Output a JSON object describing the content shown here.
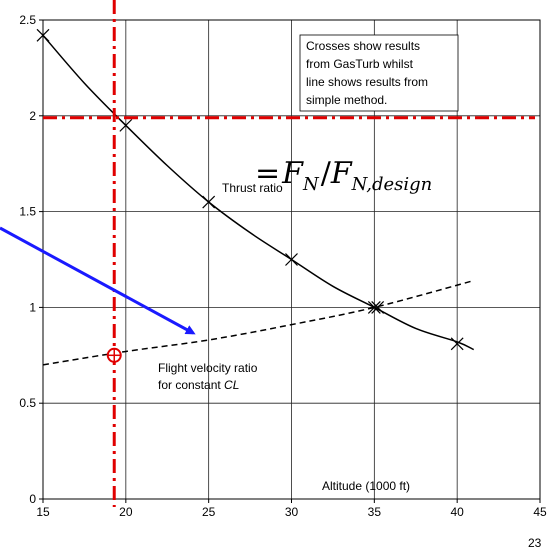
{
  "chart_data": {
    "type": "line",
    "xlabel": "Altitude (1000 ft)",
    "ylabel": "",
    "xlim": [
      15,
      45
    ],
    "ylim": [
      0,
      2.5
    ],
    "xticks": [
      "15",
      "20",
      "25",
      "30",
      "35",
      "40",
      "45"
    ],
    "yticks": [
      "0",
      "0.5",
      "1",
      "1.5",
      "2",
      "2.5"
    ],
    "grid": true,
    "series": [
      {
        "name": "Thrust ratio",
        "style": "solid",
        "color": "#000000",
        "x": [
          15,
          17.5,
          20,
          22.5,
          25,
          27.5,
          30,
          32.5,
          35,
          37.5,
          40,
          41
        ],
        "y": [
          2.42,
          2.17,
          1.95,
          1.74,
          1.55,
          1.39,
          1.25,
          1.11,
          1.0,
          0.89,
          0.82,
          0.78
        ]
      },
      {
        "name": "Flight velocity ratio for constant CL",
        "style": "dashed",
        "color": "#000000",
        "x": [
          15,
          20,
          25,
          30,
          35,
          41
        ],
        "y": [
          0.7,
          0.77,
          0.83,
          0.91,
          1.0,
          1.14
        ]
      }
    ],
    "markers": {
      "name": "GasTurb results",
      "symbol": "x",
      "points": [
        {
          "x": 15,
          "y": 2.42
        },
        {
          "x": 20,
          "y": 1.95
        },
        {
          "x": 25,
          "y": 1.55
        },
        {
          "x": 30,
          "y": 1.25
        },
        {
          "x": 35,
          "y": 1.0
        },
        {
          "x": 40,
          "y": 0.81
        },
        {
          "x": 35.2,
          "y": 1.0
        }
      ]
    },
    "annotations": {
      "box_text": [
        "Crosses show results",
        "from GasTurb whilst",
        "line shows results from",
        "simple method."
      ],
      "thrust_label": "Thrust ratio",
      "velocity_label_line1": "Flight velocity ratio",
      "velocity_label_line2_prefix": "for constant ",
      "velocity_label_line2_italic": "CL",
      "xlabel_inset": "Altitude (1000 ft)",
      "equation": "= F_N / F_N,design"
    },
    "overlay": {
      "color": "#e00000",
      "vertical_x": 19.3,
      "horizontal_y": 1.99,
      "circle": {
        "x": 19.3,
        "y": 0.75
      },
      "arrow_color": "#1a1aff"
    },
    "slide_number": "23"
  }
}
